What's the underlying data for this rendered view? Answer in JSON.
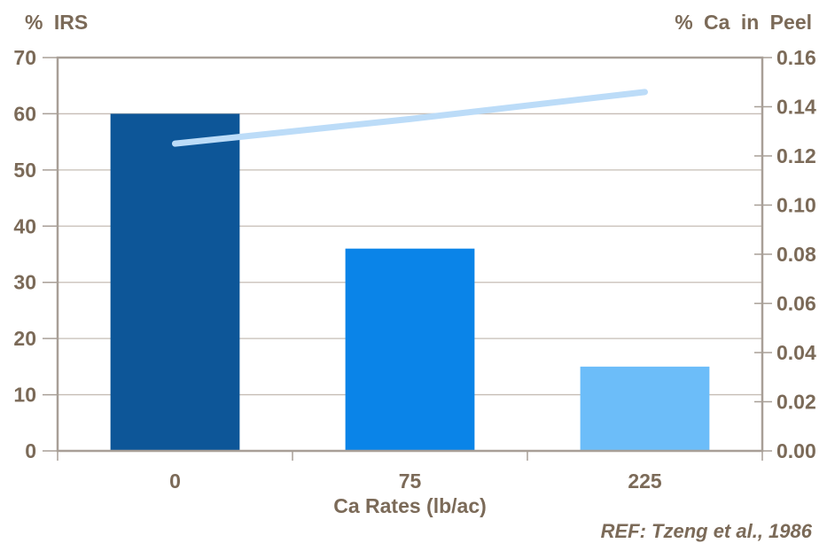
{
  "chart_data": {
    "type": "combo",
    "categories": [
      "0",
      "75",
      "225"
    ],
    "x_axis": {
      "title": "Ca Rates (lb/ac)"
    },
    "left_axis": {
      "title": "% IRS",
      "min": 0,
      "max": 70,
      "tick_values": [
        0,
        10,
        20,
        30,
        40,
        50,
        60,
        70
      ],
      "tick_labels": [
        "0",
        "10",
        "20",
        "30",
        "40",
        "50",
        "60",
        "70"
      ]
    },
    "right_axis": {
      "title": "% Ca in Peel",
      "min": 0,
      "max": 0.16,
      "tick_values": [
        0,
        0.02,
        0.04,
        0.06,
        0.08,
        0.1,
        0.12,
        0.14,
        0.16
      ],
      "tick_labels": [
        "0.00",
        "0.02",
        "0.04",
        "0.06",
        "0.08",
        "0.10",
        "0.12",
        "0.14",
        "0.16"
      ]
    },
    "series": [
      {
        "name": "% IRS",
        "type": "bar",
        "axis": "left",
        "values": [
          60,
          36,
          15
        ],
        "bar_colors": [
          "#0D5698",
          "#0A84E8",
          "#6CBDF9"
        ]
      },
      {
        "name": "% Ca in Peel",
        "type": "line",
        "axis": "right",
        "values": [
          0.125,
          0.135,
          0.146
        ],
        "color": "#BCDCF8"
      }
    ],
    "annotation": "REF: Tzeng et al., 1986",
    "colors": {
      "text": "#7B6A58",
      "axis": "#A89F97",
      "gridline": "#C6BDB5",
      "background": "#FFFFFF"
    },
    "layout": {
      "grid": "horizontal",
      "legend": "none"
    }
  }
}
